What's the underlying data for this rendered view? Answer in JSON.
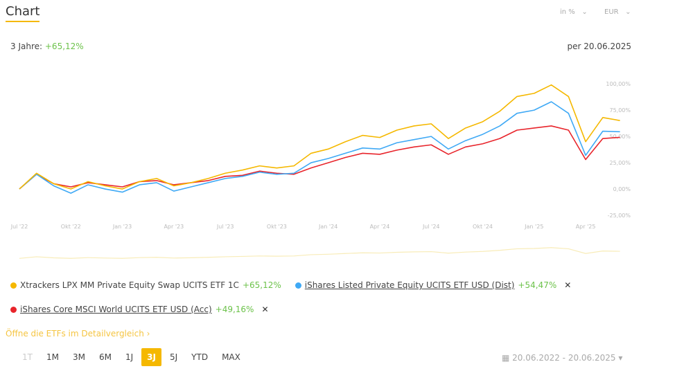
{
  "header": {
    "title": "Chart",
    "unit_select": "in %",
    "currency_select": "EUR"
  },
  "summary": {
    "label": "3 Jahre:",
    "as_of": "per 20.06.2025"
  },
  "chart_data": {
    "type": "line",
    "categories": [
      "Jul '22",
      null,
      null,
      "Okt '22",
      null,
      null,
      "Jan '23",
      null,
      null,
      "Apr '23",
      null,
      null,
      "Jul '23",
      null,
      null,
      "Okt '23",
      null,
      null,
      "Jan '24",
      null,
      null,
      "Apr '24",
      null,
      null,
      "Jul '24",
      null,
      null,
      "Okt '24",
      null,
      null,
      "Jan '25",
      null,
      null,
      "Apr '25",
      null,
      null
    ],
    "series": [
      {
        "name": "Xtrackers LPX MM Private Equity Swap UCITS ETF 1C",
        "change": "+65,12%",
        "color": "#f5b800",
        "values": [
          0,
          15,
          5,
          0,
          7,
          3,
          0,
          7,
          10,
          3,
          6,
          10,
          15,
          18,
          22,
          20,
          22,
          34,
          38,
          45,
          51,
          49,
          56,
          60,
          62,
          48,
          58,
          64,
          74,
          88,
          91,
          99,
          88,
          45,
          68,
          65.12
        ]
      },
      {
        "name": "iShares Listed Private Equity UCITS ETF USD (Dist)",
        "change": "+54,47%",
        "color": "#3fa9f5",
        "values": [
          0,
          14,
          3,
          -4,
          4,
          0,
          -3,
          4,
          6,
          -2,
          2,
          6,
          10,
          12,
          16,
          14,
          15,
          25,
          29,
          34,
          39,
          38,
          44,
          47,
          50,
          38,
          46,
          52,
          60,
          72,
          75,
          83,
          72,
          32,
          55,
          54.47
        ]
      },
      {
        "name": "iShares Core MSCI World UCITS ETF USD (Acc)",
        "change": "+49,16%",
        "color": "#e8242b",
        "values": [
          0,
          14,
          5,
          2,
          6,
          4,
          2,
          7,
          8,
          4,
          6,
          8,
          12,
          13,
          17,
          15,
          14,
          20,
          25,
          30,
          34,
          33,
          37,
          40,
          42,
          33,
          40,
          43,
          48,
          56,
          58,
          60,
          56,
          28,
          48,
          49.16
        ]
      }
    ],
    "ylim": [
      -30,
      110
    ],
    "yticks": [
      {
        "value": 100,
        "label": "100,00%"
      },
      {
        "value": 75,
        "label": "75,00%"
      },
      {
        "value": 50,
        "label": "50,00%"
      },
      {
        "value": 25,
        "label": "25,00%"
      },
      {
        "value": 0,
        "label": "0,00%"
      },
      {
        "value": -25,
        "label": "-25,00%"
      }
    ],
    "grid": false
  },
  "detail_link": "Öffne die ETFs im Detailvergleich",
  "ranges": [
    "1T",
    "1M",
    "3M",
    "6M",
    "1J",
    "3J",
    "5J",
    "YTD",
    "MAX"
  ],
  "active_range": "3J",
  "date_range": "20.06.2022 - 20.06.2025"
}
